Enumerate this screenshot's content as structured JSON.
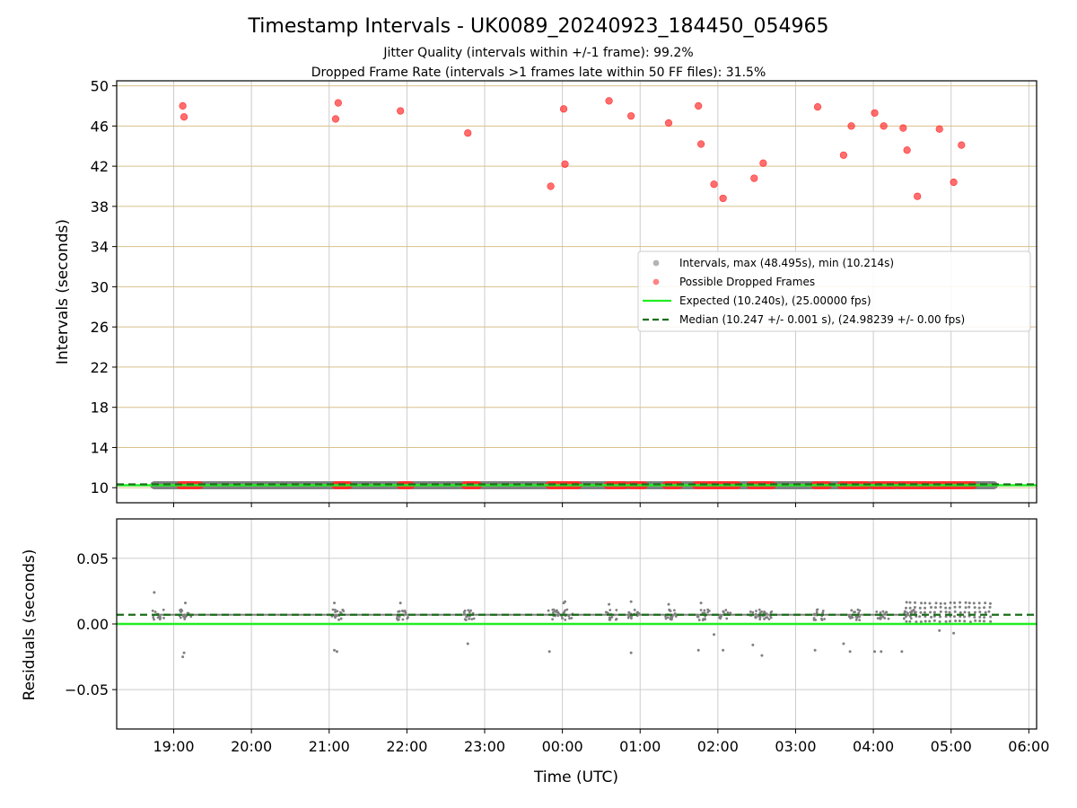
{
  "title": "Timestamp Intervals - UK0089_20240923_184450_054965",
  "subtitle_1": "Jitter Quality (intervals within +/-1 frame): 99.2%",
  "subtitle_2": "Dropped Frame Rate (intervals >1 frames late within 50 FF files): 31.5%",
  "colors": {
    "intervals": "#808080",
    "dropped": "#ff3030",
    "expected": "#22ee22",
    "median": "#1a6e1a",
    "hgrid_top": "#d8c08a",
    "grid": "#cccccc"
  },
  "chart_data": [
    {
      "type": "scatter",
      "name": "top-panel",
      "ylabel": "Intervals (seconds)",
      "xlabel": "",
      "x_unit": "time (UTC), continuing past midnight into next day",
      "xlim": [
        "18:16",
        "06:06"
      ],
      "ylim": [
        8.5,
        50.5
      ],
      "yticks": [
        "10",
        "14",
        "18",
        "22",
        "26",
        "30",
        "34",
        "38",
        "42",
        "46",
        "50"
      ],
      "xticks": [
        "19:00",
        "20:00",
        "21:00",
        "22:00",
        "23:00",
        "00:00",
        "01:00",
        "02:00",
        "03:00",
        "04:00",
        "05:00",
        "06:00"
      ],
      "grid": "horizontal and vertical",
      "legend_position": "center-right",
      "legend": [
        "Intervals, max (48.495s), min (10.214s)",
        "Possible Dropped Frames",
        "Expected (10.240s), (25.00000 fps)",
        "Median (10.247 +/- 0.001 s), (24.98239 +/- 0.00 fps)"
      ],
      "expected_value": 10.24,
      "median_value": 10.247,
      "intervals_band": {
        "from": "18:45",
        "to": "05:33",
        "value": 10.247
      },
      "dropped_frames_band_segments": [
        [
          "19:05",
          "19:20"
        ],
        [
          "21:05",
          "21:15"
        ],
        [
          "21:55",
          "22:03"
        ],
        [
          "22:45",
          "22:55"
        ],
        [
          "23:50",
          "00:12"
        ],
        [
          "00:35",
          "00:48"
        ],
        [
          "00:53",
          "01:03"
        ],
        [
          "01:20",
          "01:30"
        ],
        [
          "01:43",
          "02:15"
        ],
        [
          "02:25",
          "02:42"
        ],
        [
          "03:15",
          "03:25"
        ],
        [
          "03:35",
          "03:55"
        ],
        [
          "04:00",
          "04:16"
        ],
        [
          "04:20",
          "04:45"
        ],
        [
          "04:48",
          "05:17"
        ]
      ],
      "dropped_frames_outliers": [
        {
          "x": "19:07",
          "y": 48.0
        },
        {
          "x": "19:08",
          "y": 46.9
        },
        {
          "x": "21:05",
          "y": 46.7
        },
        {
          "x": "21:07",
          "y": 48.3
        },
        {
          "x": "21:55",
          "y": 47.5
        },
        {
          "x": "22:47",
          "y": 45.3
        },
        {
          "x": "23:51",
          "y": 40.0
        },
        {
          "x": "00:01",
          "y": 47.7
        },
        {
          "x": "00:02",
          "y": 42.2
        },
        {
          "x": "00:36",
          "y": 48.5
        },
        {
          "x": "00:53",
          "y": 47.0
        },
        {
          "x": "01:22",
          "y": 46.3
        },
        {
          "x": "01:45",
          "y": 48.0
        },
        {
          "x": "01:47",
          "y": 44.2
        },
        {
          "x": "01:57",
          "y": 40.2
        },
        {
          "x": "02:04",
          "y": 38.8
        },
        {
          "x": "02:28",
          "y": 40.8
        },
        {
          "x": "02:35",
          "y": 42.3
        },
        {
          "x": "03:17",
          "y": 47.9
        },
        {
          "x": "03:37",
          "y": 43.1
        },
        {
          "x": "03:43",
          "y": 46.0
        },
        {
          "x": "04:01",
          "y": 47.3
        },
        {
          "x": "04:08",
          "y": 46.0
        },
        {
          "x": "04:23",
          "y": 45.8
        },
        {
          "x": "04:26",
          "y": 43.6
        },
        {
          "x": "04:34",
          "y": 39.0
        },
        {
          "x": "04:51",
          "y": 45.7
        },
        {
          "x": "05:02",
          "y": 40.4
        },
        {
          "x": "05:08",
          "y": 44.1
        }
      ]
    },
    {
      "type": "scatter",
      "name": "bottom-panel",
      "ylabel": "Residuals (seconds)",
      "xlabel": "Time (UTC)",
      "xlim": [
        "18:16",
        "06:06"
      ],
      "ylim": [
        -0.08,
        0.08
      ],
      "yticks": [
        "0.05",
        "0.00",
        "−0.05"
      ],
      "ytick_values": [
        0.05,
        0.0,
        -0.05
      ],
      "xticks": [
        "19:00",
        "20:00",
        "21:00",
        "22:00",
        "23:00",
        "00:00",
        "01:00",
        "02:00",
        "03:00",
        "04:00",
        "05:00",
        "06:00"
      ],
      "grid": "horizontal and vertical",
      "expected_value": 0.0,
      "median_value": 0.007,
      "residual_baseline": {
        "from": "18:45",
        "to": "05:33",
        "value": 0.007
      },
      "residual_clusters": [
        "18:46",
        "19:07",
        "21:05",
        "21:55",
        "22:47",
        "23:51",
        "00:02",
        "00:36",
        "00:53",
        "01:22",
        "01:47",
        "02:04",
        "02:28",
        "02:35",
        "03:17",
        "03:43",
        "04:05",
        "04:26"
      ],
      "dense_band": {
        "from": "04:25",
        "to": "05:33",
        "low": 0.002,
        "high": 0.016
      },
      "residual_outliers": [
        {
          "x": "18:45",
          "y": 0.024
        },
        {
          "x": "19:07",
          "y": -0.025
        },
        {
          "x": "19:08",
          "y": -0.022
        },
        {
          "x": "19:09",
          "y": 0.016
        },
        {
          "x": "21:04",
          "y": -0.02
        },
        {
          "x": "21:06",
          "y": -0.021
        },
        {
          "x": "21:04",
          "y": 0.016
        },
        {
          "x": "21:55",
          "y": 0.016
        },
        {
          "x": "22:47",
          "y": -0.015
        },
        {
          "x": "23:50",
          "y": -0.021
        },
        {
          "x": "00:01",
          "y": 0.016
        },
        {
          "x": "00:02",
          "y": 0.017
        },
        {
          "x": "00:36",
          "y": 0.015
        },
        {
          "x": "00:53",
          "y": -0.022
        },
        {
          "x": "00:53",
          "y": 0.017
        },
        {
          "x": "01:22",
          "y": 0.015
        },
        {
          "x": "01:45",
          "y": -0.02
        },
        {
          "x": "01:47",
          "y": 0.016
        },
        {
          "x": "01:57",
          "y": -0.008
        },
        {
          "x": "02:04",
          "y": -0.02
        },
        {
          "x": "02:27",
          "y": -0.016
        },
        {
          "x": "02:34",
          "y": -0.024
        },
        {
          "x": "03:15",
          "y": -0.02
        },
        {
          "x": "03:37",
          "y": -0.015
        },
        {
          "x": "03:42",
          "y": -0.021
        },
        {
          "x": "04:01",
          "y": -0.021
        },
        {
          "x": "04:06",
          "y": -0.021
        },
        {
          "x": "04:22",
          "y": -0.021
        },
        {
          "x": "04:51",
          "y": -0.005
        },
        {
          "x": "05:02",
          "y": -0.007
        }
      ]
    }
  ]
}
